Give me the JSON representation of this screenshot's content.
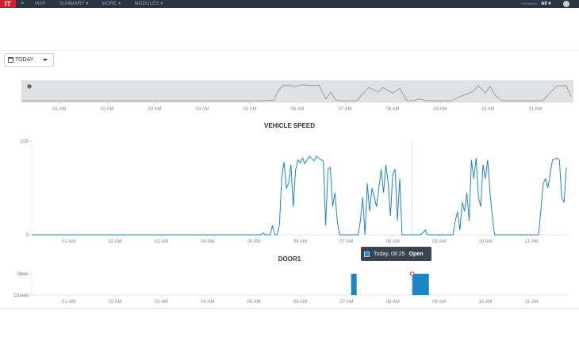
{
  "header": {
    "logo": "IT",
    "nav": [
      "MAP",
      "SUMMARY ▾",
      "MORE ▾",
      "MODULES ▾"
    ],
    "showing_label": "SHOWING",
    "showing_value": "All ▾"
  },
  "toolbar": {
    "date_range_label": "TODAY"
  },
  "colors": {
    "series": "#1f84c6",
    "door": "#1b85c9",
    "topbar": "#2b3542",
    "overview_bg": "#dfe1e3"
  },
  "icons": {
    "menu": "hamburger-icon",
    "calendar": "calendar-icon",
    "caret": "caret-down-icon",
    "info": "info-icon",
    "user": "user-icon"
  },
  "chart_data": [
    {
      "type": "area",
      "title": "",
      "note": "overview navigator",
      "x_ticks": [
        "01 AM",
        "02 AM",
        "03 AM",
        "04 AM",
        "05 AM",
        "06 AM",
        "07 AM",
        "08 AM",
        "09 AM",
        "10 AM",
        "11 AM"
      ],
      "xlim": [
        0.2,
        11.8
      ],
      "ylim": [
        0,
        100
      ],
      "series": [
        {
          "values": [
            [
              0.2,
              0
            ],
            [
              5.3,
              0
            ],
            [
              5.45,
              3
            ],
            [
              5.5,
              0
            ],
            [
              5.6,
              55
            ],
            [
              5.7,
              80
            ],
            [
              5.8,
              82
            ],
            [
              5.95,
              75
            ],
            [
              6.1,
              84
            ],
            [
              6.3,
              80
            ],
            [
              6.45,
              82
            ],
            [
              6.6,
              10
            ],
            [
              6.7,
              45
            ],
            [
              6.8,
              5
            ],
            [
              6.9,
              0
            ],
            [
              7.25,
              0
            ],
            [
              7.35,
              30
            ],
            [
              7.5,
              70
            ],
            [
              7.7,
              45
            ],
            [
              7.8,
              70
            ],
            [
              8.0,
              40
            ],
            [
              8.15,
              65
            ],
            [
              8.3,
              0
            ],
            [
              8.45,
              0
            ],
            [
              8.55,
              10
            ],
            [
              8.7,
              0
            ],
            [
              9.25,
              0
            ],
            [
              9.4,
              20
            ],
            [
              9.55,
              35
            ],
            [
              9.7,
              50
            ],
            [
              9.8,
              80
            ],
            [
              9.95,
              40
            ],
            [
              10.05,
              75
            ],
            [
              10.15,
              30
            ],
            [
              10.3,
              0
            ],
            [
              11.15,
              0
            ],
            [
              11.3,
              40
            ],
            [
              11.45,
              78
            ],
            [
              11.65,
              80
            ],
            [
              11.75,
              20
            ]
          ]
        }
      ]
    },
    {
      "type": "line",
      "title": "VEHICLE SPEED",
      "x_ticks": [
        "01 AM",
        "02 AM",
        "03 AM",
        "04 AM",
        "05 AM",
        "06 AM",
        "07 AM",
        "08 AM",
        "09 AM",
        "10 AM",
        "11 AM"
      ],
      "y_ticks": [
        "0",
        "100"
      ],
      "xlim": [
        0.2,
        11.8
      ],
      "ylim": [
        0,
        100
      ],
      "crosshair_x": 8.42,
      "series": [
        {
          "values": [
            [
              0.2,
              0
            ],
            [
              5.15,
              0
            ],
            [
              5.2,
              2
            ],
            [
              5.25,
              0
            ],
            [
              5.35,
              0
            ],
            [
              5.4,
              10
            ],
            [
              5.45,
              0
            ],
            [
              5.5,
              0
            ],
            [
              5.55,
              10
            ],
            [
              5.6,
              60
            ],
            [
              5.65,
              78
            ],
            [
              5.7,
              50
            ],
            [
              5.75,
              55
            ],
            [
              5.8,
              75
            ],
            [
              5.85,
              30
            ],
            [
              5.9,
              70
            ],
            [
              5.95,
              80
            ],
            [
              6.0,
              77
            ],
            [
              6.05,
              82
            ],
            [
              6.1,
              76
            ],
            [
              6.2,
              84
            ],
            [
              6.3,
              79
            ],
            [
              6.35,
              84
            ],
            [
              6.45,
              80
            ],
            [
              6.5,
              79
            ],
            [
              6.55,
              10
            ],
            [
              6.6,
              70
            ],
            [
              6.65,
              72
            ],
            [
              6.7,
              30
            ],
            [
              6.75,
              45
            ],
            [
              6.8,
              15
            ],
            [
              6.85,
              0
            ],
            [
              7.25,
              0
            ],
            [
              7.3,
              15
            ],
            [
              7.35,
              40
            ],
            [
              7.4,
              0
            ],
            [
              7.45,
              55
            ],
            [
              7.5,
              25
            ],
            [
              7.55,
              50
            ],
            [
              7.65,
              30
            ],
            [
              7.75,
              70
            ],
            [
              7.8,
              45
            ],
            [
              7.85,
              75
            ],
            [
              7.9,
              55
            ],
            [
              7.95,
              20
            ],
            [
              8.0,
              65
            ],
            [
              8.05,
              70
            ],
            [
              8.1,
              15
            ],
            [
              8.15,
              60
            ],
            [
              8.2,
              0
            ],
            [
              8.35,
              0
            ],
            [
              8.5,
              0
            ],
            [
              8.6,
              0
            ],
            [
              8.7,
              5
            ],
            [
              8.75,
              0
            ],
            [
              9.3,
              0
            ],
            [
              9.35,
              15
            ],
            [
              9.4,
              25
            ],
            [
              9.45,
              5
            ],
            [
              9.5,
              35
            ],
            [
              9.55,
              25
            ],
            [
              9.6,
              45
            ],
            [
              9.65,
              15
            ],
            [
              9.7,
              80
            ],
            [
              9.75,
              60
            ],
            [
              9.8,
              82
            ],
            [
              9.85,
              40
            ],
            [
              9.9,
              30
            ],
            [
              9.95,
              75
            ],
            [
              10.0,
              60
            ],
            [
              10.05,
              80
            ],
            [
              10.1,
              45
            ],
            [
              10.15,
              20
            ],
            [
              10.2,
              0
            ],
            [
              11.1,
              0
            ],
            [
              11.15,
              0
            ],
            [
              11.25,
              55
            ],
            [
              11.3,
              60
            ],
            [
              11.35,
              50
            ],
            [
              11.45,
              80
            ],
            [
              11.55,
              82
            ],
            [
              11.6,
              80
            ],
            [
              11.65,
              40
            ],
            [
              11.7,
              35
            ],
            [
              11.75,
              72
            ]
          ]
        }
      ]
    },
    {
      "type": "bar",
      "title": "DOOR1",
      "x_ticks": [
        "01 AM",
        "02 AM",
        "03 AM",
        "04 AM",
        "05 AM",
        "06 AM",
        "07 AM",
        "08 AM",
        "09 AM",
        "10 AM",
        "11 AM"
      ],
      "y_ticks": [
        "Closed",
        "Open"
      ],
      "xlim": [
        0.2,
        11.8
      ],
      "spans": [
        {
          "start": 7.1,
          "end": 7.22,
          "state": "Open"
        },
        {
          "start": 8.42,
          "end": 8.78,
          "state": "Open"
        }
      ],
      "marker_x": 8.42
    }
  ],
  "tooltip": {
    "time": "Today, 08:25",
    "value": "Open"
  }
}
